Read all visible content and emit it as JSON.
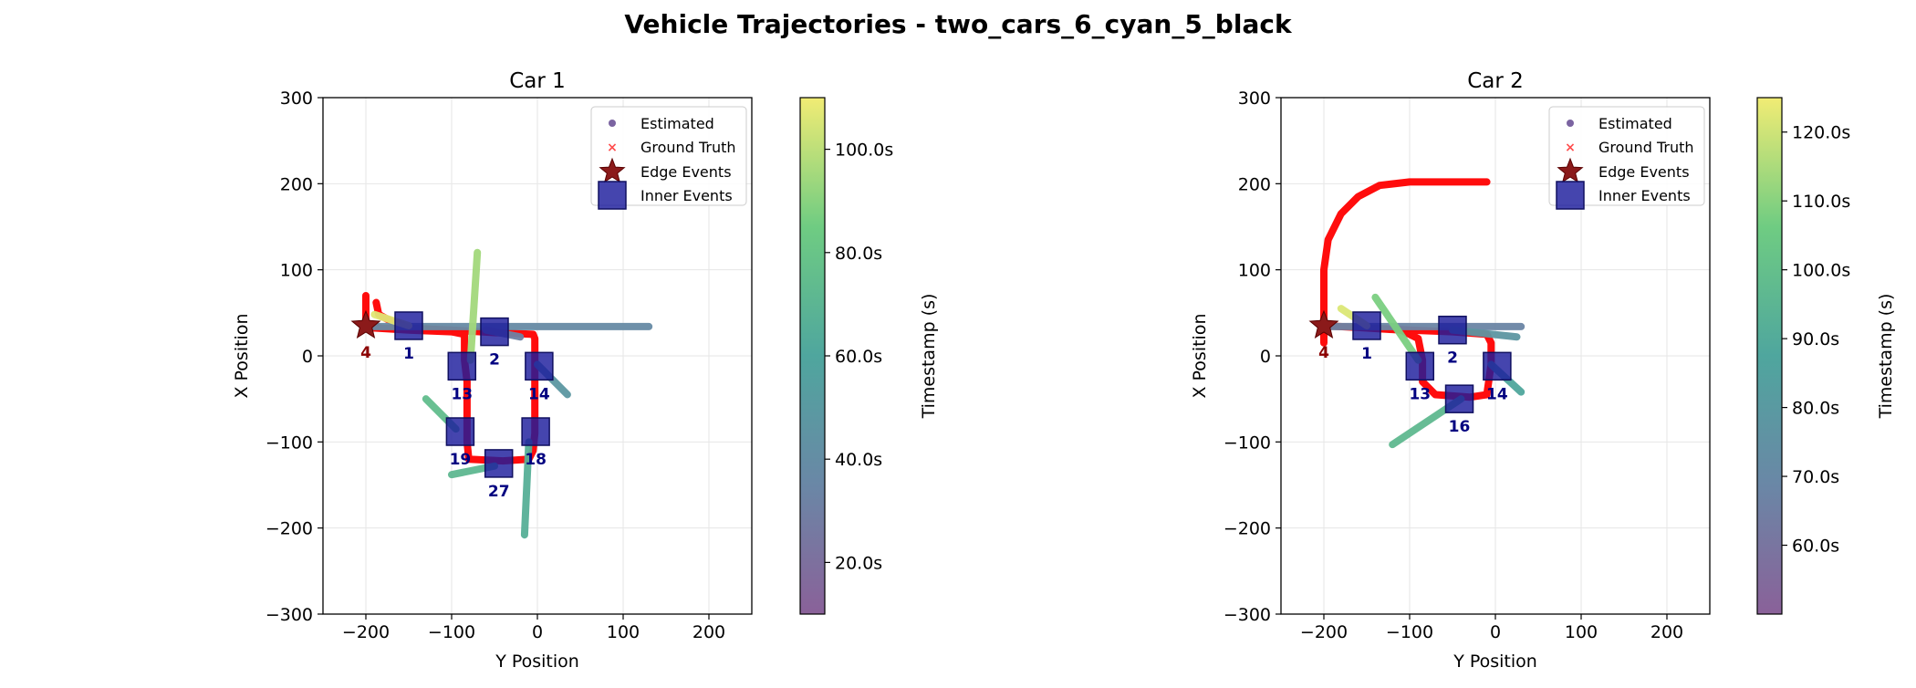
{
  "figure": {
    "title": "Vehicle Trajectories - two_cars_6_cyan_5_black"
  },
  "legend_entries": [
    "Estimated",
    "Ground Truth",
    "Edge Events",
    "Inner Events"
  ],
  "colors": {
    "ground_truth": "#ff0000",
    "edge_event": "#8b1a1a",
    "inner_event": "#1c1c9c",
    "inner_label": "#000080",
    "edge_label": "#8b0000"
  },
  "chart_data": [
    {
      "type": "scatter",
      "title": "Car 1",
      "xlabel": "Y Position",
      "ylabel": "X Position",
      "xlim": [
        -250,
        250
      ],
      "ylim": [
        -300,
        300
      ],
      "xticks": [
        -200,
        -100,
        0,
        100,
        200
      ],
      "yticks": [
        -300,
        -200,
        -100,
        0,
        100,
        200,
        300
      ],
      "xtick_labels": [
        "−200",
        "−100",
        "0",
        "100",
        "200"
      ],
      "ytick_labels": [
        "−300",
        "−200",
        "−100",
        "0",
        "100",
        "200",
        "300"
      ],
      "grid": true,
      "legend_position": "upper right",
      "colorbar": {
        "label": "Timestamp (s)",
        "range": [
          10,
          110
        ],
        "ticks": [
          20,
          40,
          60,
          80,
          100
        ],
        "tick_labels": [
          "20.0s",
          "40.0s",
          "60.0s",
          "80.0s",
          "100.0s"
        ]
      },
      "ground_truth": [
        [
          [
            -200,
            70
          ],
          [
            -200,
            35
          ],
          [
            -180,
            32
          ],
          [
            -150,
            32
          ],
          [
            -100,
            30
          ],
          [
            -50,
            27
          ],
          [
            -5,
            25
          ],
          [
            -3,
            20
          ],
          [
            -3,
            -10
          ],
          [
            -3,
            -50
          ],
          [
            -3,
            -90
          ],
          [
            -5,
            -110
          ],
          [
            -10,
            -120
          ],
          [
            -40,
            -122
          ],
          [
            -80,
            -120
          ],
          [
            -82,
            -100
          ],
          [
            -82,
            -60
          ],
          [
            -82,
            -30
          ],
          [
            -85,
            -5
          ],
          [
            -85,
            25
          ],
          [
            -100,
            28
          ],
          [
            -150,
            30
          ],
          [
            -200,
            33
          ]
        ],
        [
          [
            -188,
            62
          ],
          [
            -185,
            48
          ],
          [
            -170,
            40
          ],
          [
            -155,
            35
          ]
        ]
      ],
      "estimated_segments": [
        {
          "points": [
            [
              130,
              34
            ],
            [
              -200,
              34
            ]
          ],
          "t": 38
        },
        {
          "points": [
            [
              -60,
              30
            ],
            [
              -20,
              22
            ]
          ],
          "t": 32
        },
        {
          "points": [
            [
              0,
              -10
            ],
            [
              35,
              -45
            ]
          ],
          "t": 48
        },
        {
          "points": [
            [
              -78,
              -5
            ],
            [
              -70,
              120
            ]
          ],
          "t": 95
        },
        {
          "points": [
            [
              -130,
              -50
            ],
            [
              -95,
              -85
            ]
          ],
          "t": 75
        },
        {
          "points": [
            [
              -100,
              -138
            ],
            [
              -50,
              -128
            ]
          ],
          "t": 72
        },
        {
          "points": [
            [
              -10,
              -100
            ],
            [
              -15,
              -208
            ]
          ],
          "t": 66
        },
        {
          "points": [
            [
              -190,
              48
            ],
            [
              -150,
              35
            ]
          ],
          "t": 107
        }
      ],
      "edge_events": [
        {
          "label": "4",
          "x": -200,
          "y": 35
        }
      ],
      "inner_events": [
        {
          "label": "1",
          "x": -150,
          "y": 35
        },
        {
          "label": "2",
          "x": -50,
          "y": 28
        },
        {
          "label": "13",
          "x": -88,
          "y": -12
        },
        {
          "label": "14",
          "x": 2,
          "y": -12
        },
        {
          "label": "19",
          "x": -90,
          "y": -88
        },
        {
          "label": "18",
          "x": -2,
          "y": -88
        },
        {
          "label": "27",
          "x": -45,
          "y": -125
        }
      ]
    },
    {
      "type": "scatter",
      "title": "Car 2",
      "xlabel": "Y Position",
      "ylabel": "X Position",
      "xlim": [
        -250,
        250
      ],
      "ylim": [
        -300,
        300
      ],
      "xticks": [
        -200,
        -100,
        0,
        100,
        200
      ],
      "yticks": [
        -300,
        -200,
        -100,
        0,
        100,
        200,
        300
      ],
      "xtick_labels": [
        "−200",
        "−100",
        "0",
        "100",
        "200"
      ],
      "ytick_labels": [
        "−300",
        "−200",
        "−100",
        "0",
        "100",
        "200",
        "300"
      ],
      "grid": true,
      "legend_position": "upper right",
      "colorbar": {
        "label": "Timestamp (s)",
        "range": [
          50,
          125
        ],
        "ticks": [
          60,
          70,
          80,
          90,
          100,
          110,
          120
        ],
        "tick_labels": [
          "60.0s",
          "70.0s",
          "80.0s",
          "90.0s",
          "100.0s",
          "110.0s",
          "120.0s"
        ]
      },
      "ground_truth": [
        [
          [
            -200,
            15
          ],
          [
            -200,
            100
          ],
          [
            -195,
            135
          ],
          [
            -180,
            165
          ],
          [
            -160,
            185
          ],
          [
            -135,
            198
          ],
          [
            -100,
            202
          ],
          [
            -60,
            202
          ],
          [
            -10,
            202
          ]
        ],
        [
          [
            -200,
            35
          ],
          [
            -160,
            33
          ],
          [
            -100,
            30
          ],
          [
            -50,
            28
          ],
          [
            -10,
            25
          ],
          [
            -5,
            15
          ],
          [
            -5,
            -10
          ],
          [
            -10,
            -45
          ],
          [
            -30,
            -48
          ],
          [
            -70,
            -45
          ],
          [
            -85,
            -30
          ],
          [
            -85,
            -5
          ],
          [
            -90,
            20
          ],
          [
            -110,
            30
          ],
          [
            -160,
            33
          ]
        ]
      ],
      "estimated_segments": [
        {
          "points": [
            [
              30,
              34
            ],
            [
              -200,
              34
            ]
          ],
          "t": 68
        },
        {
          "points": [
            [
              -50,
              30
            ],
            [
              25,
              22
            ]
          ],
          "t": 78
        },
        {
          "points": [
            [
              -140,
              68
            ],
            [
              -90,
              -5
            ]
          ],
          "t": 108
        },
        {
          "points": [
            [
              -5,
              -10
            ],
            [
              30,
              -42
            ]
          ],
          "t": 88
        },
        {
          "points": [
            [
              -40,
              -50
            ],
            [
              -120,
              -103
            ]
          ],
          "t": 97
        },
        {
          "points": [
            [
              -180,
              55
            ],
            [
              -150,
              35
            ]
          ],
          "t": 122
        }
      ],
      "edge_events": [
        {
          "label": "4",
          "x": -200,
          "y": 35
        }
      ],
      "inner_events": [
        {
          "label": "1",
          "x": -150,
          "y": 35
        },
        {
          "label": "2",
          "x": -50,
          "y": 30
        },
        {
          "label": "13",
          "x": -88,
          "y": -12
        },
        {
          "label": "14",
          "x": 2,
          "y": -12
        },
        {
          "label": "16",
          "x": -42,
          "y": -50
        }
      ]
    }
  ]
}
